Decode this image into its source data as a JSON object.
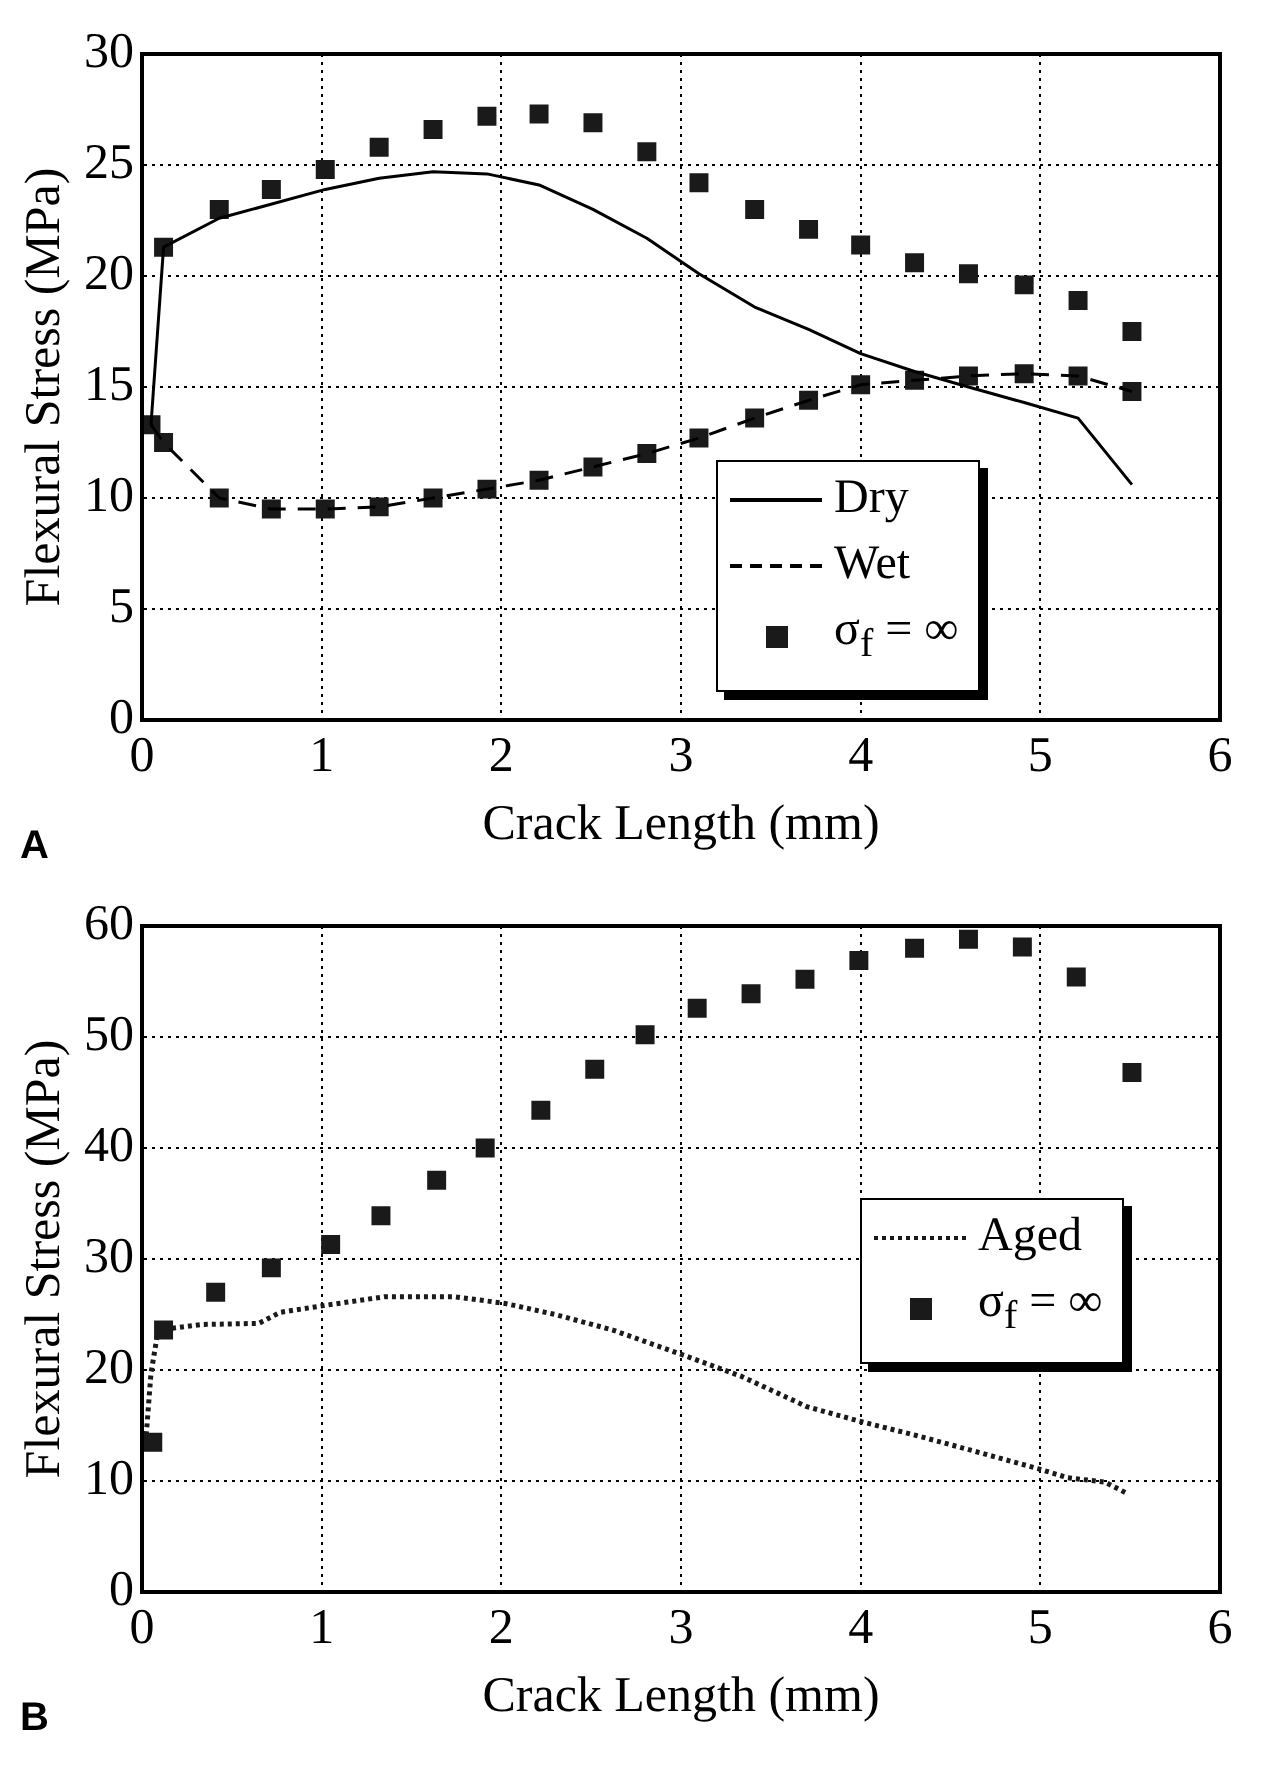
{
  "chart_data": [
    {
      "type": "line",
      "xlabel": "Crack Length (mm)",
      "ylabel": "Flexural Stress (MPa)",
      "annotations": [
        "A"
      ],
      "xlim": [
        0,
        6
      ],
      "xticks": [
        0,
        1,
        2,
        3,
        4,
        5,
        6
      ],
      "ylim": [
        0,
        30
      ],
      "yticks": [
        0,
        5,
        10,
        15,
        20,
        25,
        30
      ],
      "grid": true,
      "legend": "bottom right",
      "series": [
        {
          "name": "Dry",
          "type": "line",
          "color": "#000000",
          "line_style": "solid",
          "marker": "none",
          "x": [
            0.05,
            0.12,
            0.43,
            1.02,
            1.32,
            1.62,
            1.92,
            2.21,
            2.51,
            2.81,
            3.1,
            3.41,
            3.71,
            4.0,
            4.3,
            4.6,
            4.91,
            5.21,
            5.51
          ],
          "values": [
            13.3,
            21.3,
            22.6,
            23.9,
            24.4,
            24.7,
            24.6,
            24.1,
            23.0,
            21.7,
            20.1,
            18.6,
            17.6,
            16.5,
            15.7,
            15.0,
            14.3,
            13.6,
            10.6
          ]
        },
        {
          "name": "Wet",
          "type": "line",
          "color": "#000000",
          "line_style": "dashed",
          "marker": "none",
          "x": [
            0.05,
            0.12,
            0.43,
            0.72,
            1.02,
            1.32,
            1.62,
            1.92,
            2.21,
            2.51,
            2.81,
            3.1,
            3.41,
            3.71,
            4.0,
            4.3,
            4.6,
            4.91,
            5.21,
            5.51
          ],
          "values": [
            13.3,
            12.5,
            10.0,
            9.5,
            9.5,
            9.6,
            10.0,
            10.4,
            10.8,
            11.4,
            12.0,
            12.7,
            13.6,
            14.4,
            15.1,
            15.3,
            15.5,
            15.6,
            15.5,
            14.8
          ]
        },
        {
          "name": "σ$_{f}$ = ∞",
          "type": "scatter",
          "color": "#1a1a1a",
          "marker": "square",
          "x": [
            0.12,
            0.43,
            0.72,
            1.02,
            1.32,
            1.62,
            1.92,
            2.21,
            2.51,
            2.81,
            3.1,
            3.41,
            3.71,
            4.0,
            4.3,
            4.6,
            4.91,
            5.21,
            5.51,
            0.05,
            0.12,
            0.43,
            0.72,
            1.02,
            1.32,
            1.62,
            1.92,
            2.21,
            2.51,
            2.81,
            3.1,
            3.41,
            3.71,
            4.0,
            4.3,
            4.6,
            4.91,
            5.21,
            5.51
          ],
          "values": [
            21.3,
            23.0,
            23.9,
            24.8,
            25.8,
            26.6,
            27.2,
            27.3,
            26.9,
            25.6,
            24.2,
            23.0,
            22.1,
            21.4,
            20.6,
            20.1,
            19.6,
            18.9,
            17.5,
            13.3,
            12.5,
            10.0,
            9.5,
            9.5,
            9.6,
            10.0,
            10.4,
            10.8,
            11.4,
            12.0,
            12.7,
            13.6,
            14.4,
            15.1,
            15.3,
            15.5,
            15.6,
            15.5,
            14.8
          ]
        }
      ]
    },
    {
      "type": "line",
      "xlabel": "Crack Length (mm)",
      "ylabel": "Flexural Stress (MPa)",
      "annotations": [
        "B"
      ],
      "xlim": [
        0,
        6
      ],
      "xticks": [
        0,
        1,
        2,
        3,
        4,
        5,
        6
      ],
      "ylim": [
        0,
        60
      ],
      "yticks": [
        0,
        10,
        20,
        30,
        40,
        50,
        60
      ],
      "grid": true,
      "legend": "right",
      "series": [
        {
          "name": "Aged",
          "type": "line",
          "color": "#1a1a1a",
          "line_style": "dotted",
          "marker": "none",
          "x": [
            0.02,
            0.05,
            0.09,
            0.33,
            0.65,
            0.77,
            1.01,
            1.35,
            1.74,
            2.02,
            2.3,
            2.62,
            3.02,
            3.34,
            3.7,
            3.99,
            4.31,
            4.63,
            4.99,
            5.15,
            5.36,
            5.48
          ],
          "values": [
            13.4,
            19.7,
            23.6,
            24.1,
            24.2,
            25.2,
            25.8,
            26.6,
            26.6,
            26.0,
            25.0,
            23.6,
            21.3,
            19.4,
            16.7,
            15.4,
            14.1,
            12.7,
            11.1,
            10.3,
            9.9,
            8.9
          ]
        },
        {
          "name": "σ$_{f}$ = ∞",
          "type": "scatter",
          "color": "#1a1a1a",
          "marker": "square",
          "x": [
            0.06,
            0.12,
            0.41,
            0.72,
            1.05,
            1.33,
            1.64,
            1.91,
            2.22,
            2.52,
            2.8,
            3.09,
            3.39,
            3.69,
            3.99,
            4.3,
            4.6,
            4.9,
            5.2,
            5.51
          ],
          "values": [
            13.5,
            23.6,
            27.0,
            29.2,
            31.3,
            33.9,
            37.1,
            40.0,
            43.4,
            47.1,
            50.2,
            52.6,
            53.9,
            55.2,
            56.9,
            58.0,
            58.8,
            58.1,
            55.4,
            46.8
          ]
        }
      ]
    }
  ]
}
